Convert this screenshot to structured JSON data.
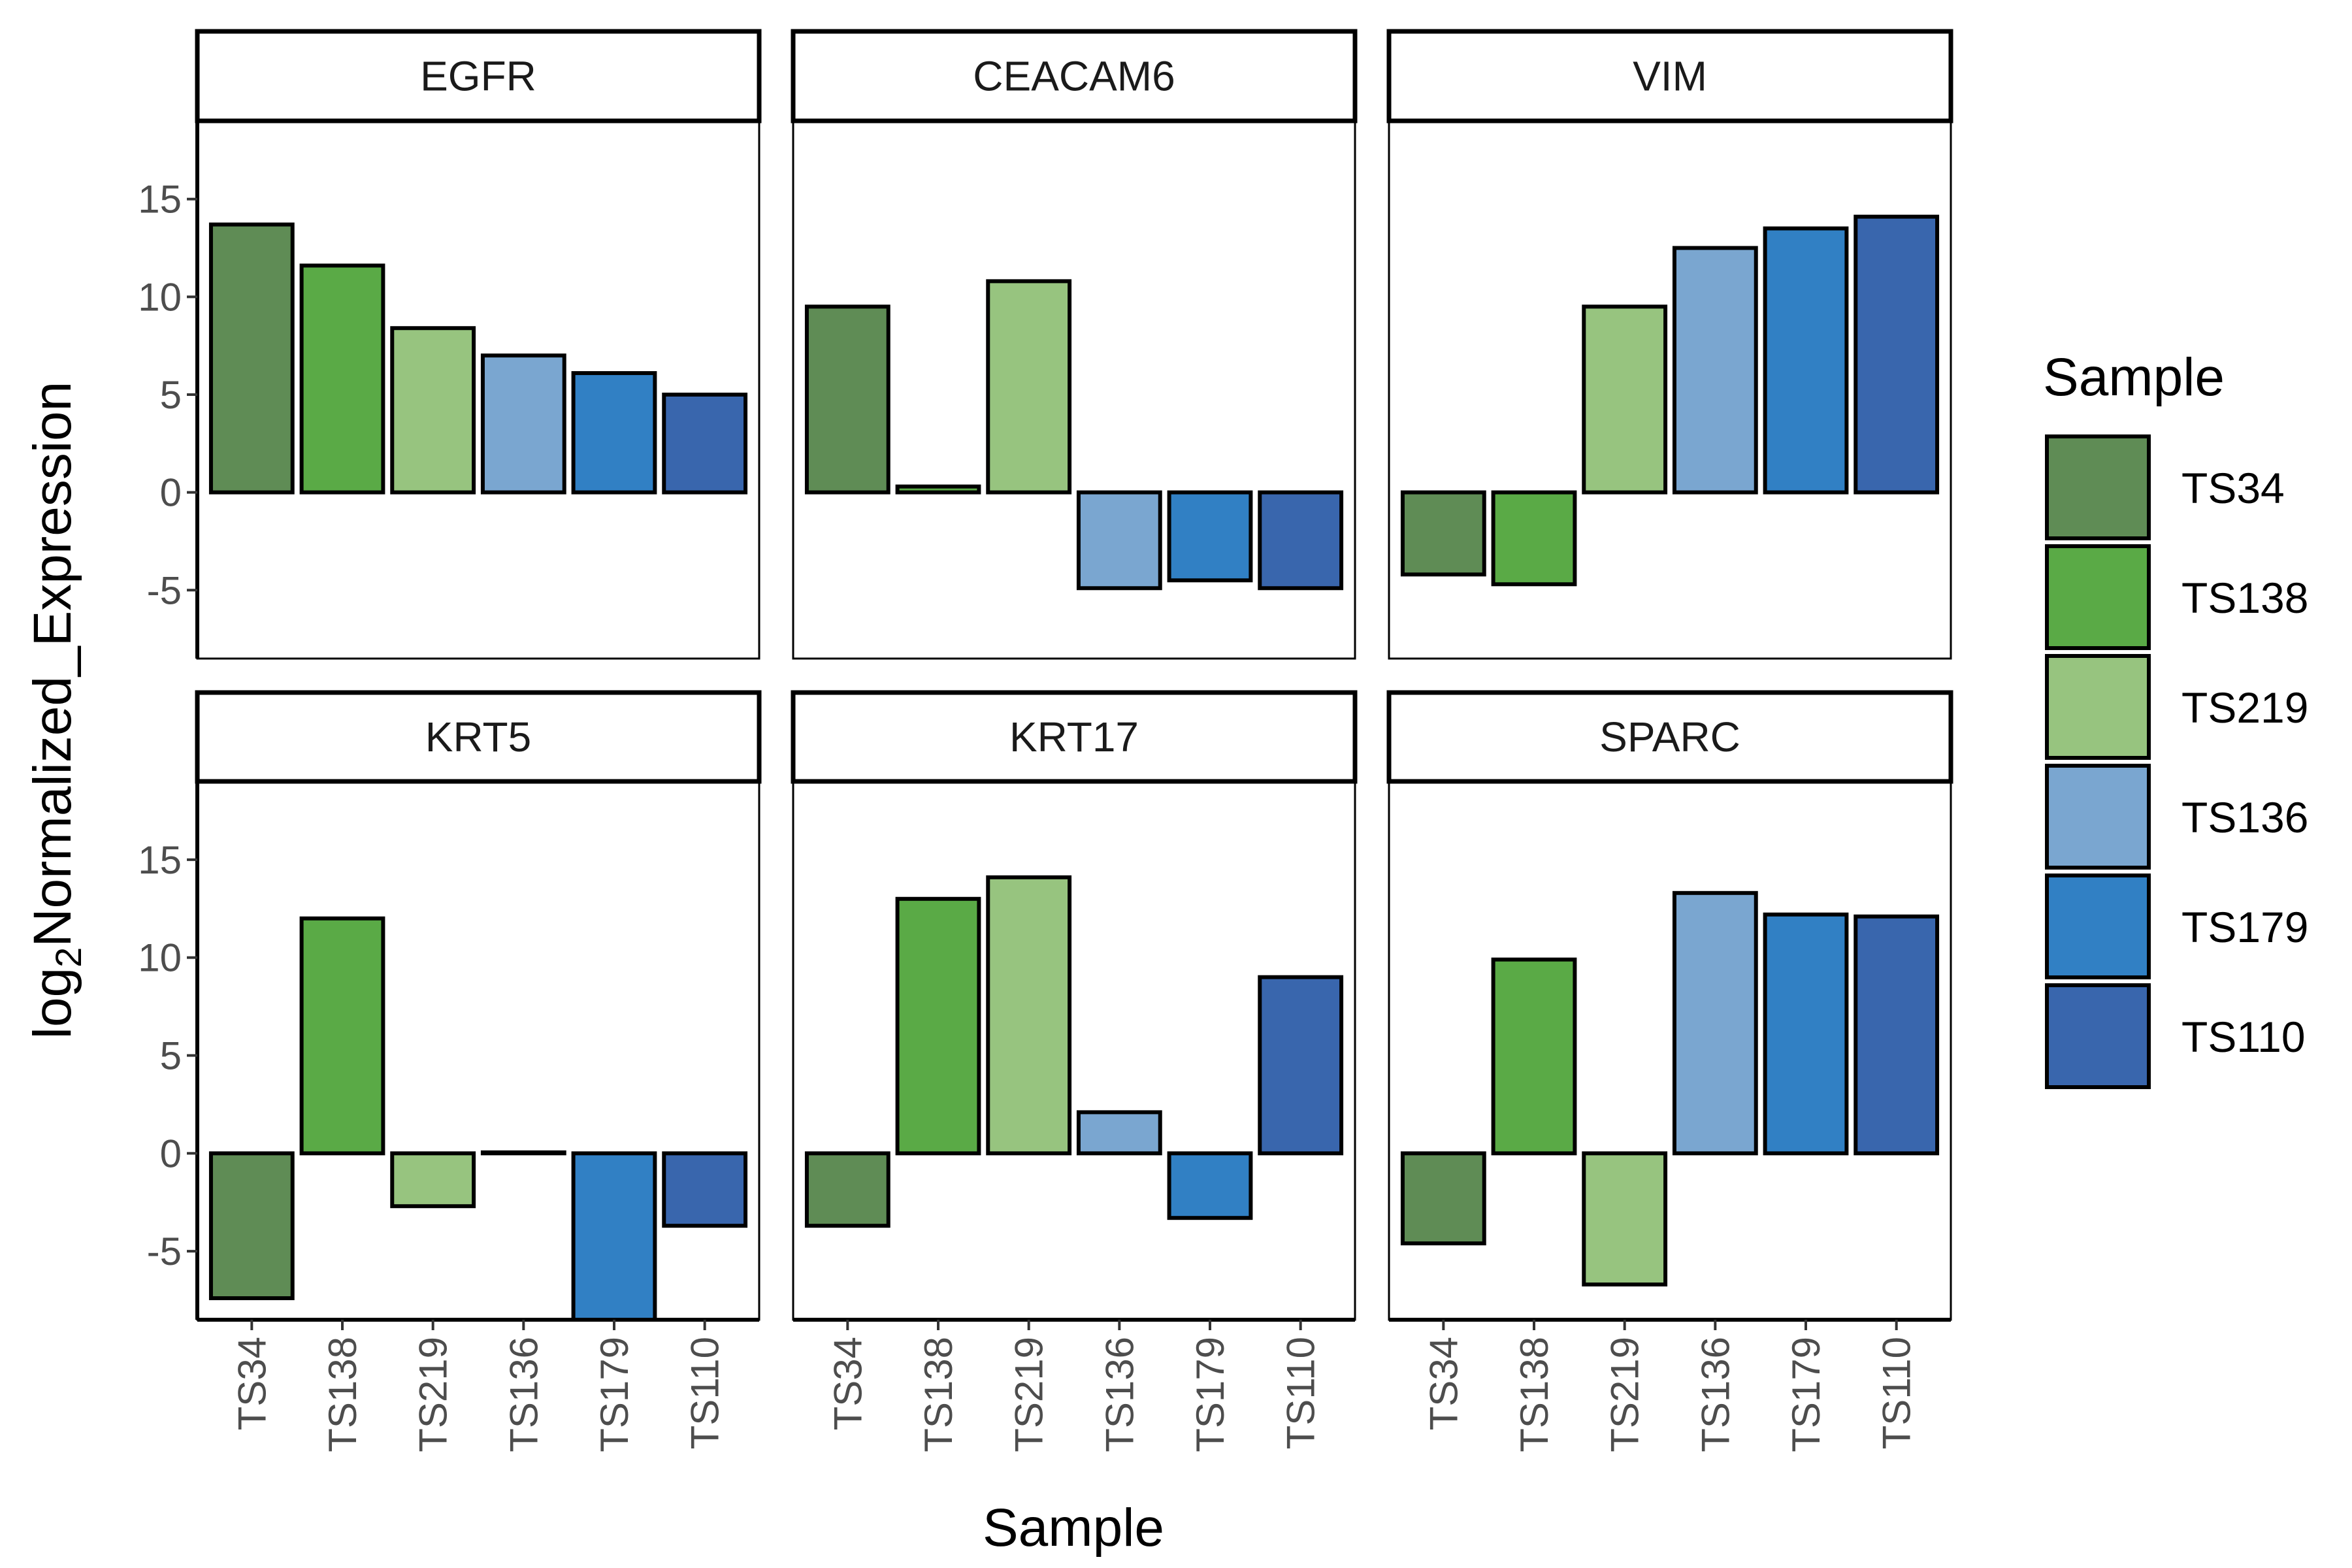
{
  "chart_data": {
    "type": "bar",
    "facet_layout": "2 rows x 3 columns",
    "categories": [
      "TS34",
      "TS138",
      "TS219",
      "TS136",
      "TS179",
      "TS110"
    ],
    "ylabel_prefix": "log",
    "ylabel_subscript": "2",
    "ylabel_main": "Normalized_Expression",
    "xlabel": "Sample",
    "y_ticks": [
      "15",
      "10",
      "5",
      "0",
      "-5"
    ],
    "y_tick_values": [
      15,
      10,
      5,
      0,
      -5
    ],
    "ylim": [
      -8.5,
      19
    ],
    "legend": {
      "title": "Sample",
      "position": "right",
      "entries": [
        "TS34",
        "TS138",
        "TS219",
        "TS136",
        "TS179",
        "TS110"
      ]
    },
    "colors": {
      "TS34": "#5f8c55",
      "TS138": "#5aaa46",
      "TS219": "#97c47f",
      "TS136": "#7aa6d0",
      "TS179": "#3180c4",
      "TS110": "#3966ad"
    },
    "panels": [
      {
        "name": "EGFR",
        "values": [
          13.7,
          11.6,
          8.4,
          7.0,
          6.1,
          5.0
        ]
      },
      {
        "name": "CEACAM6",
        "values": [
          9.5,
          0.3,
          10.8,
          -4.9,
          -4.5,
          -4.9
        ]
      },
      {
        "name": "VIM",
        "values": [
          -4.2,
          -4.7,
          9.5,
          12.5,
          13.5,
          14.1
        ]
      },
      {
        "name": "KRT5",
        "values": [
          -7.4,
          12.0,
          -2.7,
          0.05,
          -8.5,
          -3.7
        ]
      },
      {
        "name": "KRT17",
        "values": [
          -3.7,
          13.0,
          14.1,
          2.1,
          -3.3,
          9.0
        ]
      },
      {
        "name": "SPARC",
        "values": [
          -4.6,
          9.9,
          -6.7,
          13.3,
          12.2,
          12.1
        ]
      }
    ]
  }
}
